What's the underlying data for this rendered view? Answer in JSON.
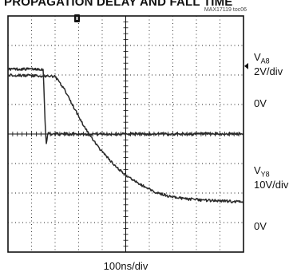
{
  "title": "PROPAGATION DELAY AND FALL TIME",
  "figure_id": "MAX17119 toc06",
  "time_scale": "100ns/div",
  "labels": {
    "ch1_main": "V",
    "ch1_sub": "A8",
    "ch1_scale": "2V/div",
    "ch1_zero": "0V",
    "ch2_main": "V",
    "ch2_sub": "Y8",
    "ch2_scale": "10V/div",
    "ch2_zero": "0V"
  },
  "chart_data": {
    "type": "line",
    "title": "PROPAGATION DELAY AND FALL TIME",
    "xlabel": "100ns/div",
    "xlim": [
      0,
      1000
    ],
    "x_unit": "ns",
    "grid": true,
    "divisions": {
      "x": 10,
      "y": 8
    },
    "series": [
      {
        "name": "V_A8",
        "scale": "2V/div",
        "zero_level_div": 2.3,
        "points": [
          [
            0,
            2.2
          ],
          [
            145,
            2.2
          ],
          [
            150,
            2.15
          ],
          [
            158,
            0.3
          ],
          [
            163,
            -0.35
          ],
          [
            170,
            0.05
          ],
          [
            180,
            0
          ],
          [
            1000,
            0
          ]
        ]
      },
      {
        "name": "V_Y8",
        "scale": "10V/div",
        "zero_level_div": -2.9,
        "points": [
          [
            0,
            2.0
          ],
          [
            200,
            1.95
          ],
          [
            240,
            1.5
          ],
          [
            280,
            0.9
          ],
          [
            320,
            0.3
          ],
          [
            360,
            -0.2
          ],
          [
            400,
            -0.6
          ],
          [
            450,
            -1.05
          ],
          [
            500,
            -1.4
          ],
          [
            560,
            -1.7
          ],
          [
            620,
            -1.95
          ],
          [
            680,
            -2.1
          ],
          [
            760,
            -2.2
          ],
          [
            840,
            -2.25
          ],
          [
            1000,
            -2.3
          ]
        ]
      }
    ]
  }
}
